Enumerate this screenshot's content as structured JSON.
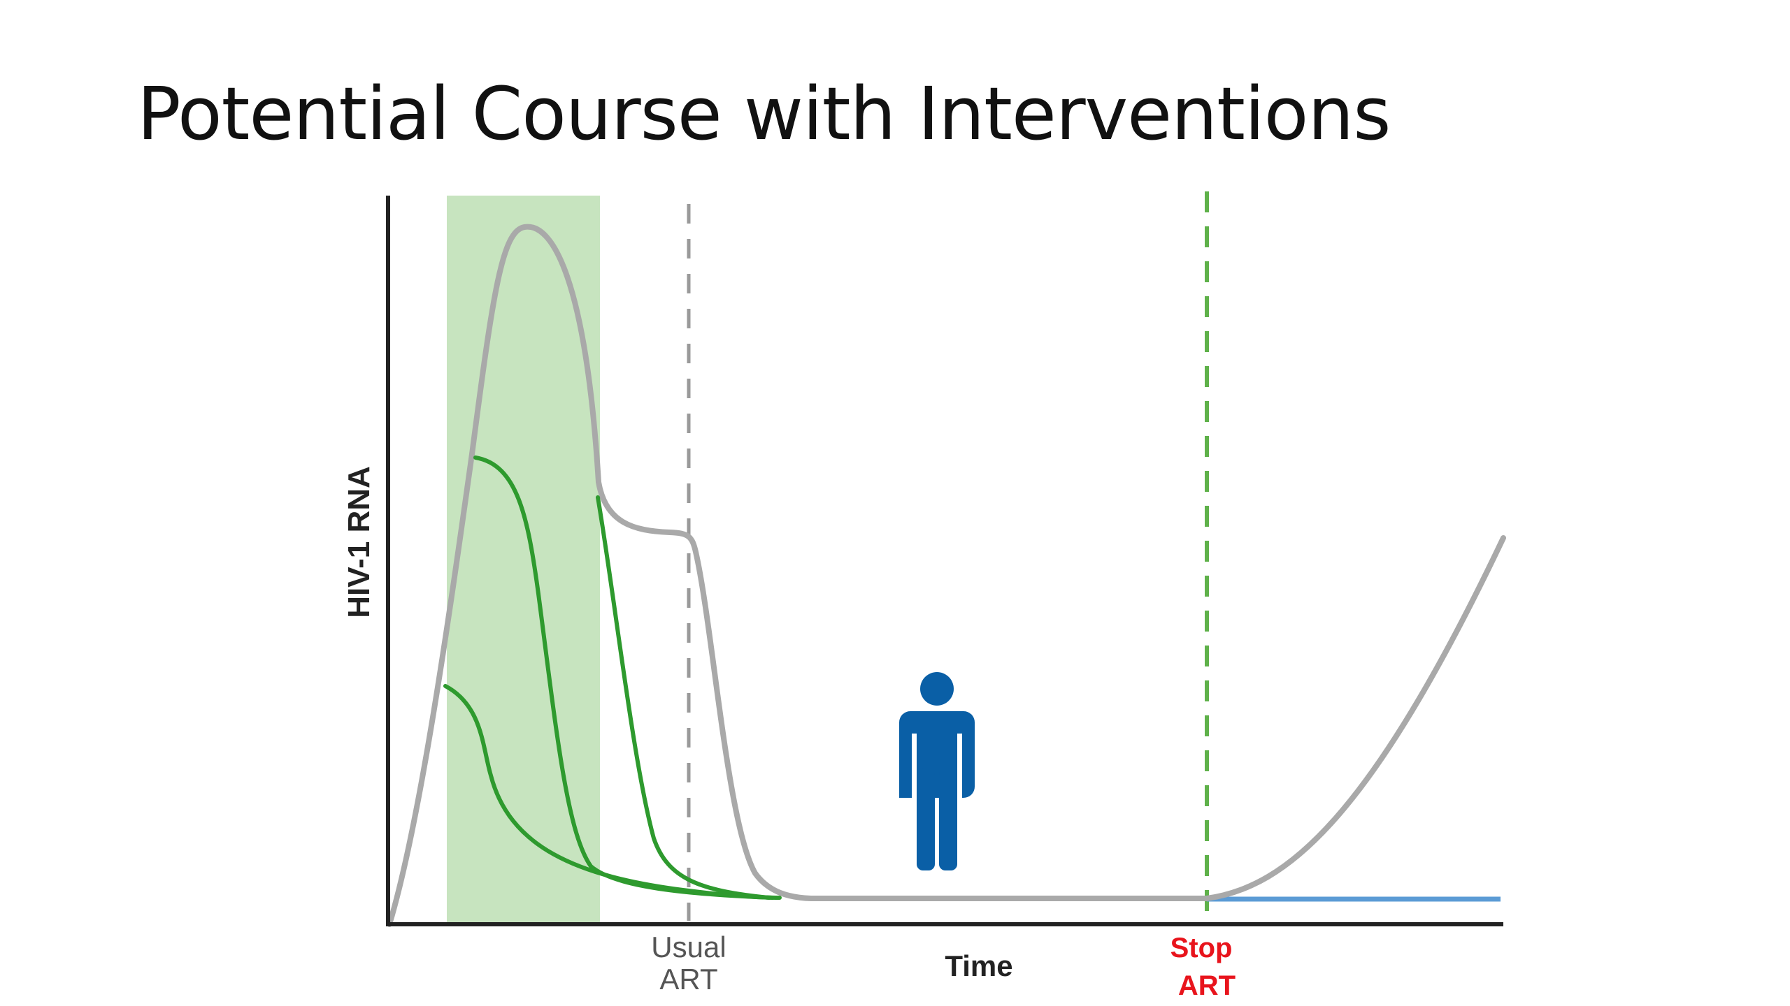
{
  "slide": {
    "title": "Potential Course with Interventions"
  },
  "figure": {
    "y_axis_label": "HIV-1 RNA",
    "x_axis_label": "Time",
    "markers": {
      "usual_art": [
        "Usual",
        "ART"
      ],
      "stop_art": [
        "Stop",
        "ART"
      ]
    },
    "colors": {
      "viral_load_curve": "#a9a9a9",
      "intervention_curves": "#2e9a2e",
      "early_window_shade": "#c7e4bf",
      "usual_art_line": "#9a9a9a",
      "stop_art_line": "#5fb14a",
      "suppressed_baseline": "#5b9bd5",
      "person_icon": "#0a5fa6",
      "stop_art_label": "#e8141c",
      "axis": "#222222"
    },
    "icons": [
      "person-icon"
    ]
  }
}
